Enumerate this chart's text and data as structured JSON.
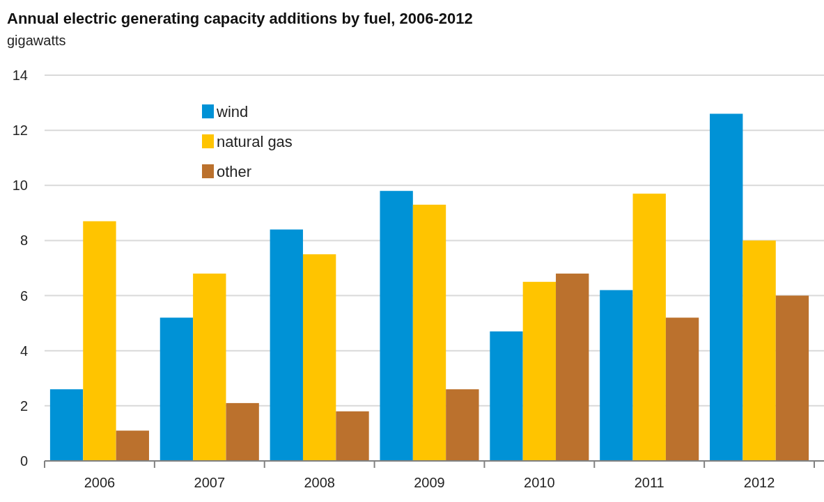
{
  "chart_data": {
    "type": "bar",
    "title": "Annual electric generating capacity additions by fuel, 2006-2012",
    "ylabel": "gigawatts",
    "categories": [
      "2006",
      "2007",
      "2008",
      "2009",
      "2010",
      "2011",
      "2012"
    ],
    "series": [
      {
        "name": "wind",
        "color": "#0092d6",
        "values": [
          2.6,
          5.2,
          8.4,
          9.8,
          4.7,
          6.2,
          12.6
        ]
      },
      {
        "name": "natural gas",
        "color": "#ffc400",
        "values": [
          8.7,
          6.8,
          7.5,
          9.3,
          6.5,
          9.7,
          8.0
        ]
      },
      {
        "name": "other",
        "color": "#bb712d",
        "values": [
          1.1,
          2.1,
          1.8,
          2.6,
          6.8,
          5.2,
          6.0
        ]
      }
    ],
    "ylim": [
      0,
      14
    ],
    "yticks": [
      0,
      2,
      4,
      6,
      8,
      10,
      12,
      14
    ],
    "grid": "y",
    "legend": "top left"
  }
}
